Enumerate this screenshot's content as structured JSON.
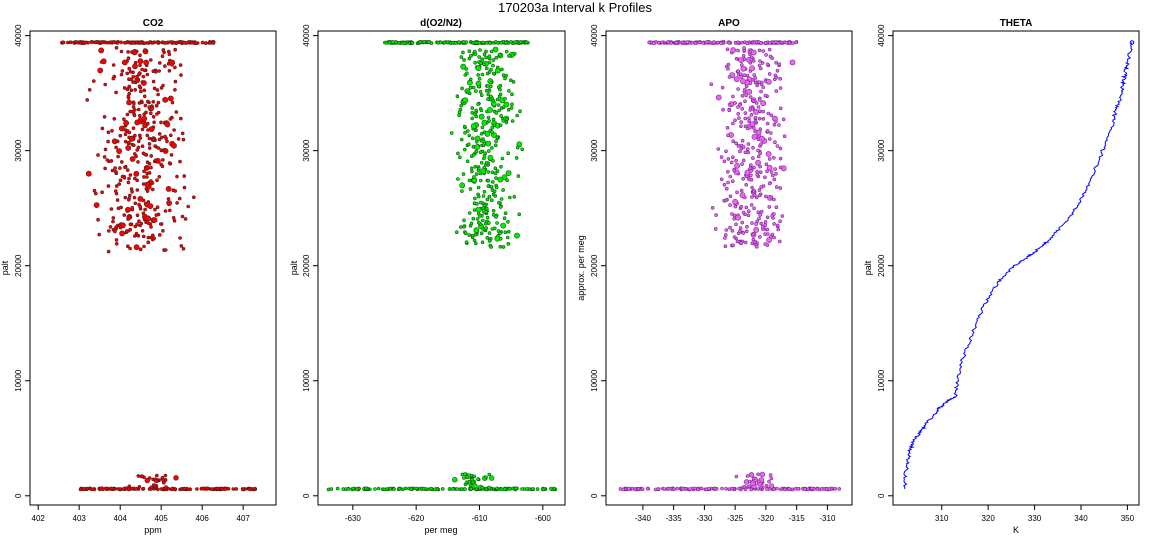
{
  "figure_title": "170203a   Interval k Profiles",
  "chart_data": [
    {
      "type": "scatter",
      "title": "CO2",
      "xlabel": "ppm",
      "ylabel": "palt",
      "xlim": [
        401.8,
        407.8
      ],
      "ylim": [
        -800,
        40400
      ],
      "xticks": [
        402,
        403,
        404,
        405,
        406,
        407
      ],
      "yticks": [
        0,
        10000,
        20000,
        30000,
        40000
      ],
      "color": "#ff0000",
      "edge_color": "#5a1a1a",
      "top_band": {
        "y": 39400,
        "x_range": [
          402.5,
          406.3
        ]
      },
      "bottom_band": {
        "y": 600,
        "x_range": [
          403.0,
          407.3
        ]
      },
      "bulk": {
        "x_center": 404.5,
        "x_spread": 1.7,
        "y_range": [
          21200,
          39000
        ],
        "count": 420
      },
      "bottom_cluster": {
        "x_center": 404.9,
        "x_spread": 0.9,
        "y_range": [
          700,
          1800
        ],
        "count": 30
      }
    },
    {
      "type": "scatter",
      "title": "d(O2/N2)",
      "xlabel": "per meg",
      "ylabel": "palt",
      "xlim": [
        -635.5,
        -596.5
      ],
      "ylim": [
        -800,
        40400
      ],
      "xticks": [
        -630,
        -620,
        -610,
        -600
      ],
      "yticks": [
        0,
        10000,
        20000,
        30000,
        40000
      ],
      "color": "#00ee00",
      "edge_color": "#0d5a0d",
      "top_band": {
        "y": 39400,
        "x_range": [
          -625,
          -602
        ]
      },
      "bottom_band": {
        "y": 600,
        "x_range": [
          -634,
          -598
        ]
      },
      "bulk": {
        "x_center": -609,
        "x_spread": 8,
        "y_range": [
          21600,
          39000
        ],
        "count": 380
      },
      "bottom_cluster": {
        "x_center": -611,
        "x_spread": 4,
        "y_range": [
          700,
          1900
        ],
        "count": 30
      }
    },
    {
      "type": "scatter",
      "title": "APO",
      "xlabel": "",
      "ylabel": "approx. per meg",
      "xlim": [
        -346,
        -306
      ],
      "ylim": [
        -800,
        40400
      ],
      "xticks": [
        -340,
        -335,
        -330,
        -325,
        -320,
        -315,
        -310
      ],
      "yticks": [
        0,
        10000,
        20000,
        30000,
        40000
      ],
      "color": "#ee66ee",
      "edge_color": "#7a2a9a",
      "top_band": {
        "y": 39400,
        "x_range": [
          -339,
          -315
        ]
      },
      "bottom_band": {
        "y": 600,
        "x_range": [
          -344,
          -308
        ]
      },
      "bulk": {
        "x_center": -322,
        "x_spread": 9,
        "y_range": [
          21600,
          39000
        ],
        "count": 380
      },
      "bottom_cluster": {
        "x_center": -322,
        "x_spread": 5,
        "y_range": [
          700,
          1900
        ],
        "count": 30
      }
    },
    {
      "type": "line",
      "title": "THETA",
      "xlabel": "K",
      "ylabel": "palt",
      "xlim": [
        299.5,
        352.5
      ],
      "ylim": [
        -800,
        40400
      ],
      "xticks": [
        310,
        320,
        330,
        340,
        350
      ],
      "yticks": [
        0,
        10000,
        20000,
        30000,
        40000
      ],
      "color": "#0000ff",
      "series": [
        {
          "x": [
            302.0,
            302.4,
            303.0,
            304.0,
            305.5,
            307.0,
            309.0,
            311.0,
            313.0,
            313.5,
            315.0,
            317.0,
            319.0,
            322.0,
            325.0,
            328.0,
            331.0,
            333.0,
            336.0,
            339.0,
            341.0,
            343.0,
            345.0,
            346.5,
            347.5,
            348.5,
            349.0,
            349.5,
            350.0,
            351.0
          ],
          "y": [
            600,
            2500,
            3800,
            4800,
            5600,
            6400,
            7400,
            8200,
            8600,
            10500,
            12500,
            14500,
            16500,
            18500,
            19800,
            20600,
            21500,
            22200,
            23500,
            25000,
            26500,
            28300,
            30300,
            32000,
            33500,
            34700,
            35800,
            36600,
            37700,
            39400
          ]
        }
      ]
    }
  ]
}
